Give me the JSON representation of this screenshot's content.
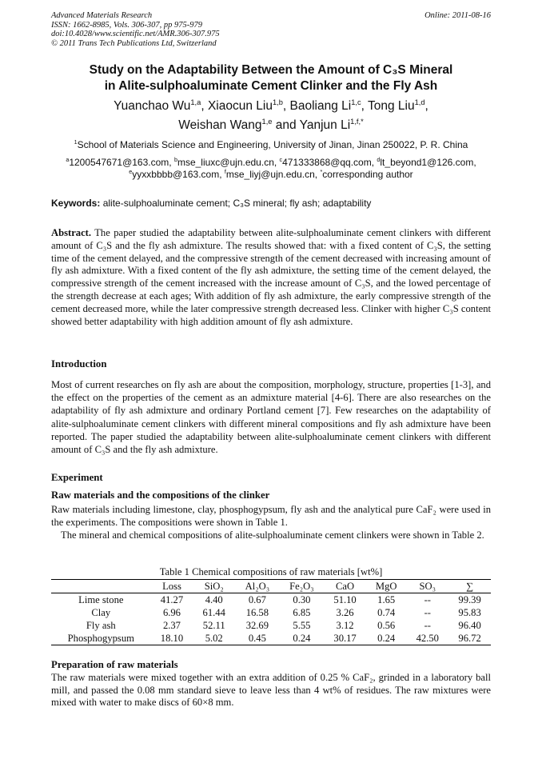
{
  "header": {
    "journal": "Advanced Materials Research",
    "issn": "ISSN: 1662-8985, Vols. 306-307, pp 975-979",
    "doi": "doi:10.4028/www.scientific.net/AMR.306-307.975",
    "copyright": "© 2011 Trans Tech Publications Ltd, Switzerland",
    "online": "Online: 2011-08-16"
  },
  "title": {
    "line1": "Study on the Adaptability Between the Amount of C₃S Mineral",
    "line2": "in Alite-sulphoaluminate Cement Clinker and the Fly Ash"
  },
  "authors": [
    {
      "name": "Yuanchao Wu",
      "sup": "1,a",
      "sep": ", "
    },
    {
      "name": "Xiaocun Liu",
      "sup": "1,b",
      "sep": ", "
    },
    {
      "name": "Baoliang Li",
      "sup": "1,c",
      "sep": ", "
    },
    {
      "name": "Tong Liu",
      "sup": "1,d",
      "sep": ","
    },
    {
      "name": "Weishan Wang",
      "sup": "1,e",
      "sep": " and "
    },
    {
      "name": "Yanjun Li",
      "sup": "1,f,*",
      "sep": ""
    }
  ],
  "affiliation": {
    "sup": "1",
    "text": "School of Materials Science and Engineering, University of Jinan, Jinan 250022, P. R. China"
  },
  "emails": [
    {
      "sup": "a",
      "text": "1200547671@163.com, "
    },
    {
      "sup": "b",
      "text": "mse_liuxc@ujn.edu.cn, "
    },
    {
      "sup": "c",
      "text": "471333868@qq.com, "
    },
    {
      "sup": "d",
      "text": "lt_beyond1@126.com,"
    },
    {
      "sup": "e",
      "text": "yyxxbbbb@163.com, "
    },
    {
      "sup": "f",
      "text": "mse_liyj@ujn.edu.cn, "
    },
    {
      "sup": "*",
      "text": "corresponding author"
    }
  ],
  "keywords": {
    "label": "Keywords:",
    "text": " alite-sulphoaluminate cement; C₃S mineral; fly ash; adaptability"
  },
  "abstract": {
    "label": "Abstract.",
    "text": " The paper studied the adaptability between alite-sulphoaluminate cement clinkers with different amount of C₃S and the fly ash admixture. The results showed that: with a fixed content of C₃S, the setting time of the cement delayed, and the compressive strength of the cement decreased with increasing amount of fly ash admixture. With a fixed content of the fly ash admixture, the setting time of the cement delayed, the compressive strength of the cement increased with the increase amount of C₃S, and the lowed percentage of the strength decrease at each ages; With addition of fly ash admixture, the early compressive strength of the cement decreased more, while the later compressive strength decreased less. Clinker with higher C₃S content showed better adaptability with high addition amount of fly ash admixture."
  },
  "introduction": {
    "heading": "Introduction",
    "text": "Most of current researches on fly ash are about the composition, morphology, structure, properties [1-3], and the effect on the properties of the cement as an admixture material [4-6]. There are also researches on the adaptability of fly ash admixture and ordinary Portland cement [7]. Few researches on the adaptability of alite-sulphoaluminate cement clinkers with different mineral compositions and fly ash admixture have been reported. The paper studied the adaptability between alite-sulphoaluminate cement clinkers with different amount of C₃S and the fly ash admixture."
  },
  "experiment": {
    "heading": "Experiment",
    "subheading": "Raw materials and the compositions of the clinker",
    "p1": "Raw materials including limestone, clay, phosphogypsum, fly ash and the analytical pure CaF₂ were used in the experiments. The compositions were shown in Table 1.",
    "p2": "The mineral and chemical compositions of alite-sulphoaluminate cement clinkers were shown in Table 2."
  },
  "table1": {
    "caption": "Table 1 Chemical compositions of raw materials [wt%]",
    "columns": [
      "",
      "Loss",
      "SiO₂",
      "Al₂O₃",
      "Fe₂O₃",
      "CaO",
      "MgO",
      "SO₃",
      "∑"
    ],
    "rows": [
      [
        "Lime stone",
        "41.27",
        "4.40",
        "0.67",
        "0.30",
        "51.10",
        "1.65",
        "--",
        "99.39"
      ],
      [
        "Clay",
        "6.96",
        "61.44",
        "16.58",
        "6.85",
        "3.26",
        "0.74",
        "--",
        "95.83"
      ],
      [
        "Fly ash",
        "2.37",
        "52.11",
        "32.69",
        "5.55",
        "3.12",
        "0.56",
        "--",
        "96.40"
      ],
      [
        "Phosphogypsum",
        "18.10",
        "5.02",
        "0.45",
        "0.24",
        "30.17",
        "0.24",
        "42.50",
        "96.72"
      ]
    ]
  },
  "preparation": {
    "heading": "Preparation of raw materials",
    "text": "The raw materials were mixed together with an extra addition of 0.25 % CaF₂, grinded in a laboratory ball mill, and passed the 0.08 mm standard sieve to leave less than 4 wt% of residues. The raw mixtures were mixed with water to make discs of 60×8 mm."
  }
}
